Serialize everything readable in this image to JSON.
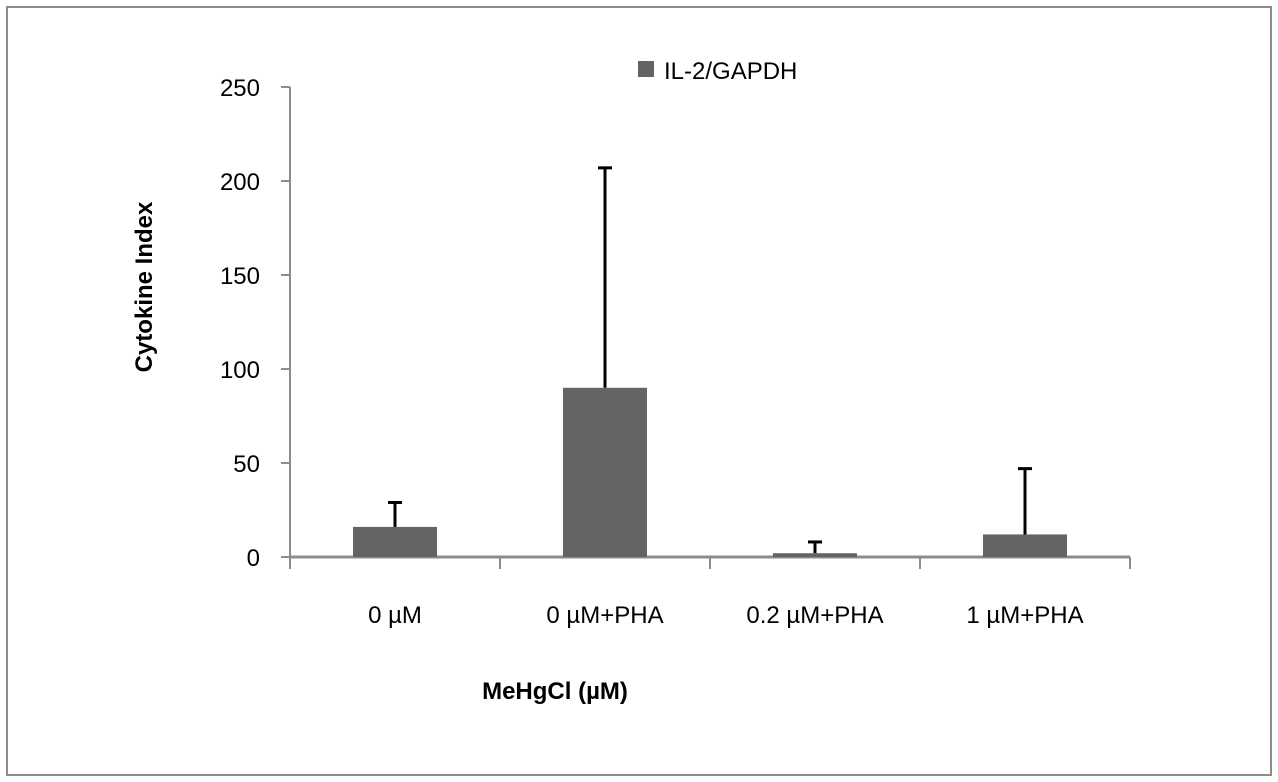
{
  "chart_data": {
    "type": "bar",
    "categories": [
      "0 µM",
      "0 µM+PHA",
      "0.2 µM+PHA",
      "1 µM+PHA"
    ],
    "series": [
      {
        "name": "IL-2/GAPDH",
        "values": [
          16,
          90,
          2,
          12
        ],
        "error_plus": [
          13,
          117,
          6,
          35
        ]
      }
    ],
    "title": "",
    "xlabel": "MeHgCl (µM)",
    "ylabel": "Cytokine Index",
    "ylim": [
      0,
      250
    ],
    "yticks": [
      0,
      50,
      100,
      150,
      200,
      250
    ],
    "grid": false,
    "legend_position": "top",
    "colors": {
      "bar": "#646464",
      "axis": "#8c8c8c",
      "error_bar": "#000000"
    }
  }
}
